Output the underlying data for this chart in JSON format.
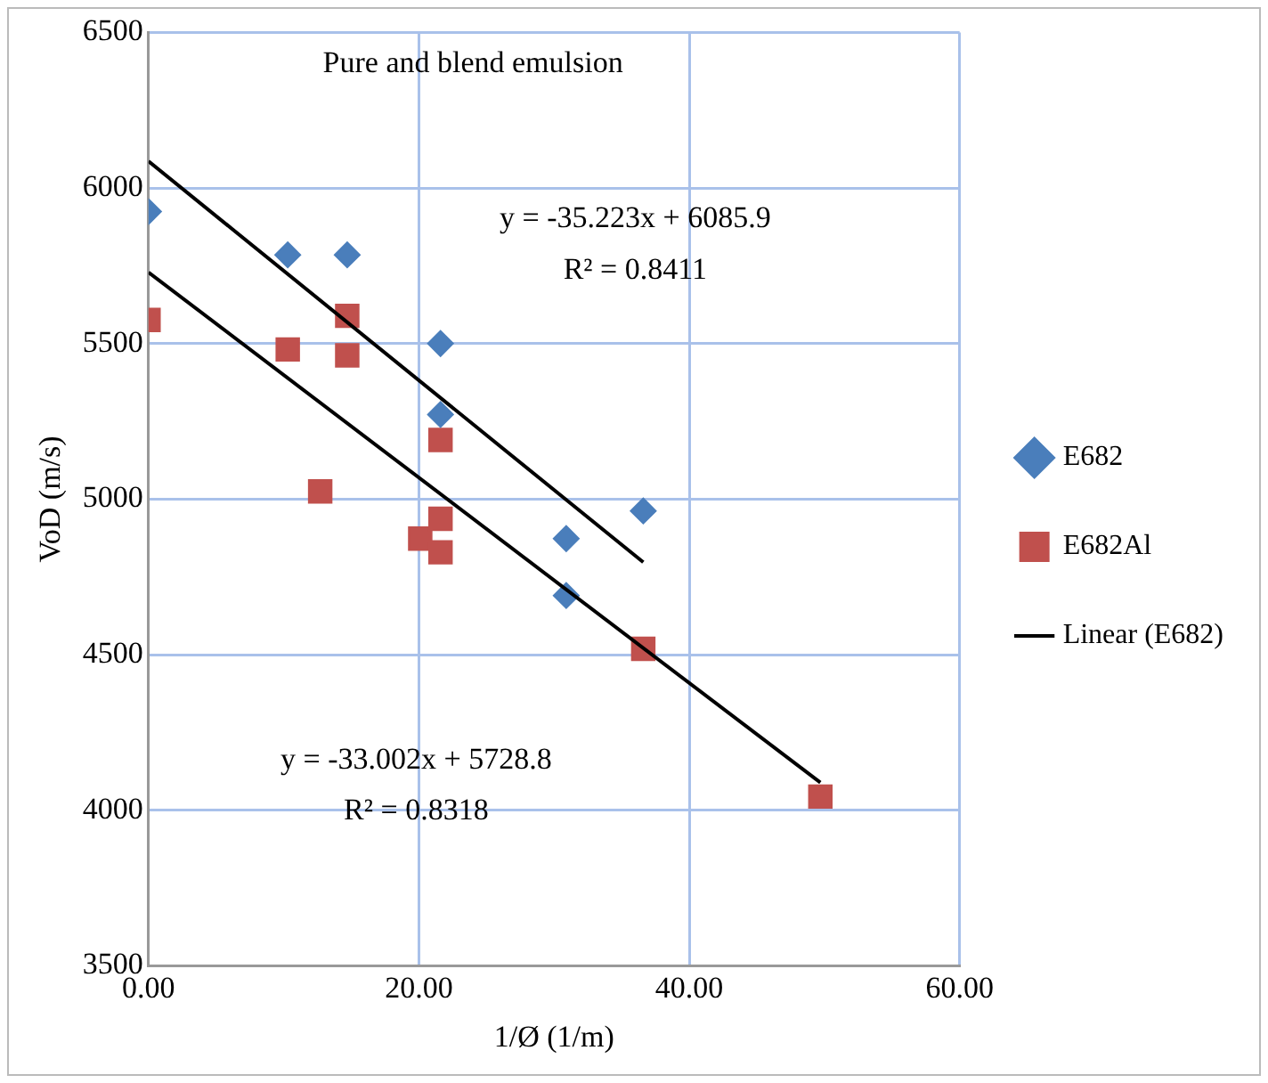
{
  "chart_data": {
    "type": "scatter",
    "title": "Pure and blend emulsion",
    "xlabel": "1/Ø (1/m)",
    "ylabel": "VoD (m/s)",
    "xlim": [
      0,
      60
    ],
    "xticks": [
      {
        "value": 0,
        "label": "0.00"
      },
      {
        "value": 20,
        "label": "20.00"
      },
      {
        "value": 40,
        "label": "40.00"
      },
      {
        "value": 60,
        "label": "60.00"
      }
    ],
    "ylim": [
      3500,
      6500
    ],
    "yticks": [
      3500,
      4000,
      4500,
      5000,
      5500,
      6000,
      6500
    ],
    "grid": true,
    "legend": "right",
    "annotations": [
      "y = -35.223x + 6085.9",
      "R² = 0.8411",
      "y = -33.002x + 5728.8",
      "R² = 0.8318"
    ],
    "series": [
      {
        "name": "E682",
        "type": "scatter",
        "marker": "diamond",
        "color": "#4a7ebb",
        "x": [
          0,
          10.3,
          14.7,
          21.6,
          21.6,
          30.9,
          36.6,
          30.9
        ],
        "values": [
          5924,
          5785,
          5785,
          5500,
          5272,
          4873,
          4962,
          4690
        ]
      },
      {
        "name": "E682Al",
        "type": "scatter",
        "marker": "square",
        "color": "#c0504d",
        "x": [
          0,
          10.3,
          14.7,
          14.7,
          21.6,
          12.7,
          20.1,
          21.6,
          21.6,
          36.6,
          49.7
        ],
        "values": [
          5576,
          5481,
          5589,
          5462,
          5190,
          5025,
          4873,
          4937,
          4829,
          4519,
          4044
        ]
      },
      {
        "name": "Linear (E682)",
        "type": "line",
        "marker": "none",
        "line_style": "solid",
        "color": "#000000",
        "x": [
          0,
          36.6
        ],
        "values": [
          6086,
          4797
        ]
      },
      {
        "type": "line",
        "marker": "none",
        "line_style": "solid",
        "color": "#000000",
        "x": [
          0,
          49.7
        ],
        "values": [
          5729,
          4089
        ]
      }
    ]
  }
}
